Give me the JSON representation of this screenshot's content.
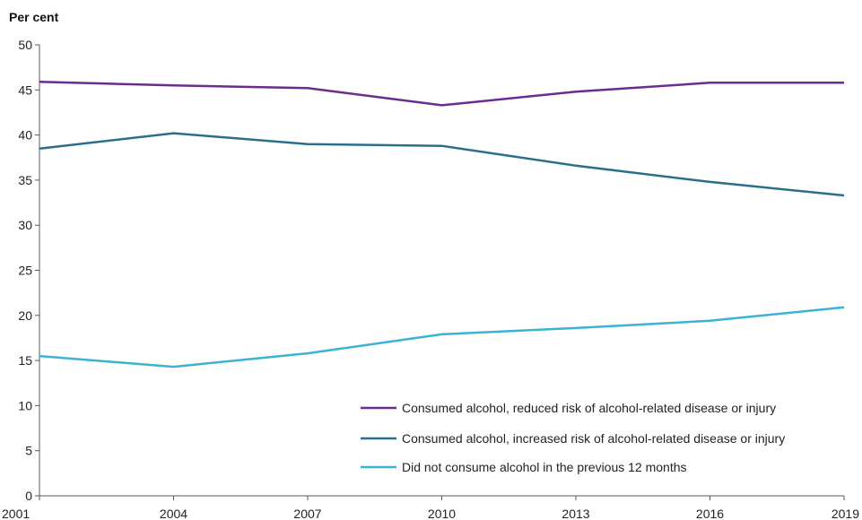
{
  "chart_data": {
    "type": "line",
    "title": "",
    "xlabel": "",
    "ylabel": "Per cent",
    "ylim": [
      0,
      50
    ],
    "yticks": [
      0,
      5,
      10,
      15,
      20,
      25,
      30,
      35,
      40,
      45,
      50
    ],
    "x": [
      "2001",
      "2004",
      "2007",
      "2010",
      "2013",
      "2016",
      "2019"
    ],
    "grid": false,
    "legend_position": "bottom-right",
    "series": [
      {
        "name": "Consumed alcohol, reduced risk of alcohol-related disease or injury",
        "color": "#6a2c91",
        "values": [
          45.9,
          45.5,
          45.2,
          43.3,
          44.8,
          45.8,
          45.8
        ]
      },
      {
        "name": "Consumed alcohol, increased risk of alcohol-related disease or injury",
        "color": "#2a6f8a",
        "values": [
          38.5,
          40.2,
          39.0,
          38.8,
          36.6,
          34.8,
          33.3
        ]
      },
      {
        "name": "Did not consume alcohol in the previous 12 months",
        "color": "#3bb3d6",
        "values": [
          15.5,
          14.3,
          15.8,
          17.9,
          18.6,
          19.4,
          20.9
        ]
      }
    ]
  }
}
